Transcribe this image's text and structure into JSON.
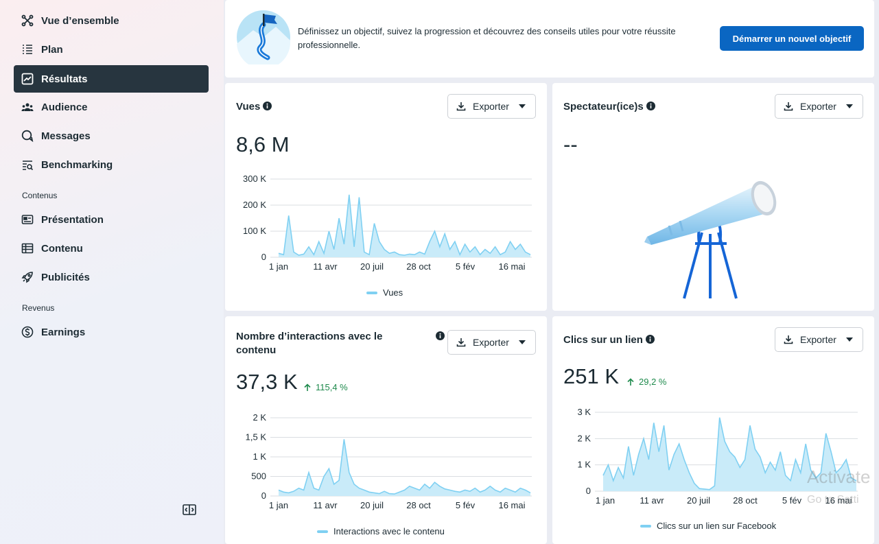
{
  "sidebar": {
    "items": [
      {
        "label": "Vue d’ensemble",
        "icon": "overview-icon"
      },
      {
        "label": "Plan",
        "icon": "list-icon"
      },
      {
        "label": "Résultats",
        "icon": "chart-icon",
        "active": true
      },
      {
        "label": "Audience",
        "icon": "people-icon"
      },
      {
        "label": "Messages",
        "icon": "chat-icon"
      },
      {
        "label": "Benchmarking",
        "icon": "benchmark-icon"
      }
    ],
    "section_content": "Contenus",
    "content_items": [
      {
        "label": "Présentation",
        "icon": "id-card-icon"
      },
      {
        "label": "Contenu",
        "icon": "table-icon"
      },
      {
        "label": "Publicités",
        "icon": "rocket-icon"
      }
    ],
    "section_revenue": "Revenus",
    "revenue_items": [
      {
        "label": "Earnings",
        "icon": "dollar-icon"
      }
    ]
  },
  "goal_banner": {
    "text": "Définissez un objectif, suivez la progression et découvrez des conseils utiles pour votre réussite professionnelle.",
    "button": "Démarrer un nouvel objectif"
  },
  "export_label": "Exporter",
  "cards": {
    "views": {
      "title": "Vues",
      "value": "8,6 M",
      "legend": "Vues"
    },
    "viewers": {
      "title": "Spectateur(ice)s",
      "value": "--"
    },
    "interactions": {
      "title": "Nombre d’interactions avec le contenu",
      "value": "37,3 K",
      "delta": "115,4 %",
      "legend": "Interactions avec le contenu"
    },
    "link_clicks": {
      "title": "Clics sur un lien",
      "value": "251 K",
      "delta": "29,2 %",
      "legend": "Clics sur un lien sur Facebook"
    }
  },
  "watermark": {
    "line1": "Activate",
    "line2": "Go to Setti"
  },
  "colors": {
    "accent": "#0a66c2",
    "series": "#7fd0f2",
    "active_nav": "#27353f",
    "positive": "#1e8a4c"
  },
  "chart_data": [
    {
      "type": "area",
      "title": "Vues",
      "x_ticks": [
        "1 jan",
        "11 avr",
        "20 juil",
        "28 oct",
        "5 fév",
        "16 mai"
      ],
      "y_ticks": [
        "0",
        "100 K",
        "200 K",
        "300 K"
      ],
      "ylim": [
        0,
        300000
      ],
      "series": [
        {
          "name": "Vues",
          "values": [
            15000,
            10000,
            160000,
            20000,
            8000,
            12000,
            40000,
            10000,
            60000,
            15000,
            100000,
            30000,
            150000,
            50000,
            240000,
            40000,
            230000,
            20000,
            10000,
            130000,
            60000,
            30000,
            15000,
            20000,
            10000,
            8000,
            12000,
            10000,
            20000,
            12000,
            60000,
            100000,
            40000,
            90000,
            30000,
            60000,
            10000,
            50000,
            20000,
            40000,
            10000,
            30000,
            15000,
            40000,
            10000,
            20000,
            60000,
            30000,
            50000,
            20000,
            10000
          ]
        }
      ]
    },
    {
      "type": "area",
      "title": "Nombre d’interactions avec le contenu",
      "x_ticks": [
        "1 jan",
        "11 avr",
        "20 juil",
        "28 oct",
        "5 fév",
        "16 mai"
      ],
      "y_ticks": [
        "0",
        "500",
        "1 K",
        "1,5 K",
        "2 K"
      ],
      "ylim": [
        0,
        2000
      ],
      "series": [
        {
          "name": "Interactions avec le contenu",
          "values": [
            150,
            100,
            80,
            120,
            200,
            150,
            600,
            200,
            150,
            500,
            700,
            300,
            400,
            1450,
            600,
            300,
            200,
            150,
            100,
            80,
            60,
            120,
            60,
            50,
            100,
            150,
            250,
            200,
            150,
            300,
            200,
            350,
            250,
            180,
            150,
            120,
            100,
            150,
            120,
            200,
            100,
            150,
            250,
            150,
            100,
            200,
            150,
            100,
            200,
            150,
            80
          ]
        }
      ]
    },
    {
      "type": "area",
      "title": "Clics sur un lien",
      "x_ticks": [
        "1 jan",
        "11 avr",
        "20 juil",
        "28 oct",
        "5 fév",
        "16 mai"
      ],
      "y_ticks": [
        "0",
        "1 K",
        "2 K",
        "3 K"
      ],
      "ylim": [
        0,
        3000
      ],
      "series": [
        {
          "name": "Clics sur un lien sur Facebook",
          "values": [
            600,
            1000,
            400,
            900,
            500,
            1700,
            600,
            1400,
            2000,
            1200,
            2600,
            1500,
            2500,
            800,
            1400,
            1800,
            1200,
            700,
            300,
            100,
            80,
            60,
            200,
            2800,
            1900,
            1500,
            1300,
            900,
            1200,
            2500,
            1600,
            1300,
            700,
            1100,
            800,
            1500,
            600,
            400,
            1200,
            700,
            1800,
            800,
            500,
            700,
            2200,
            1500,
            700,
            900,
            1200,
            500,
            400
          ]
        }
      ]
    }
  ]
}
